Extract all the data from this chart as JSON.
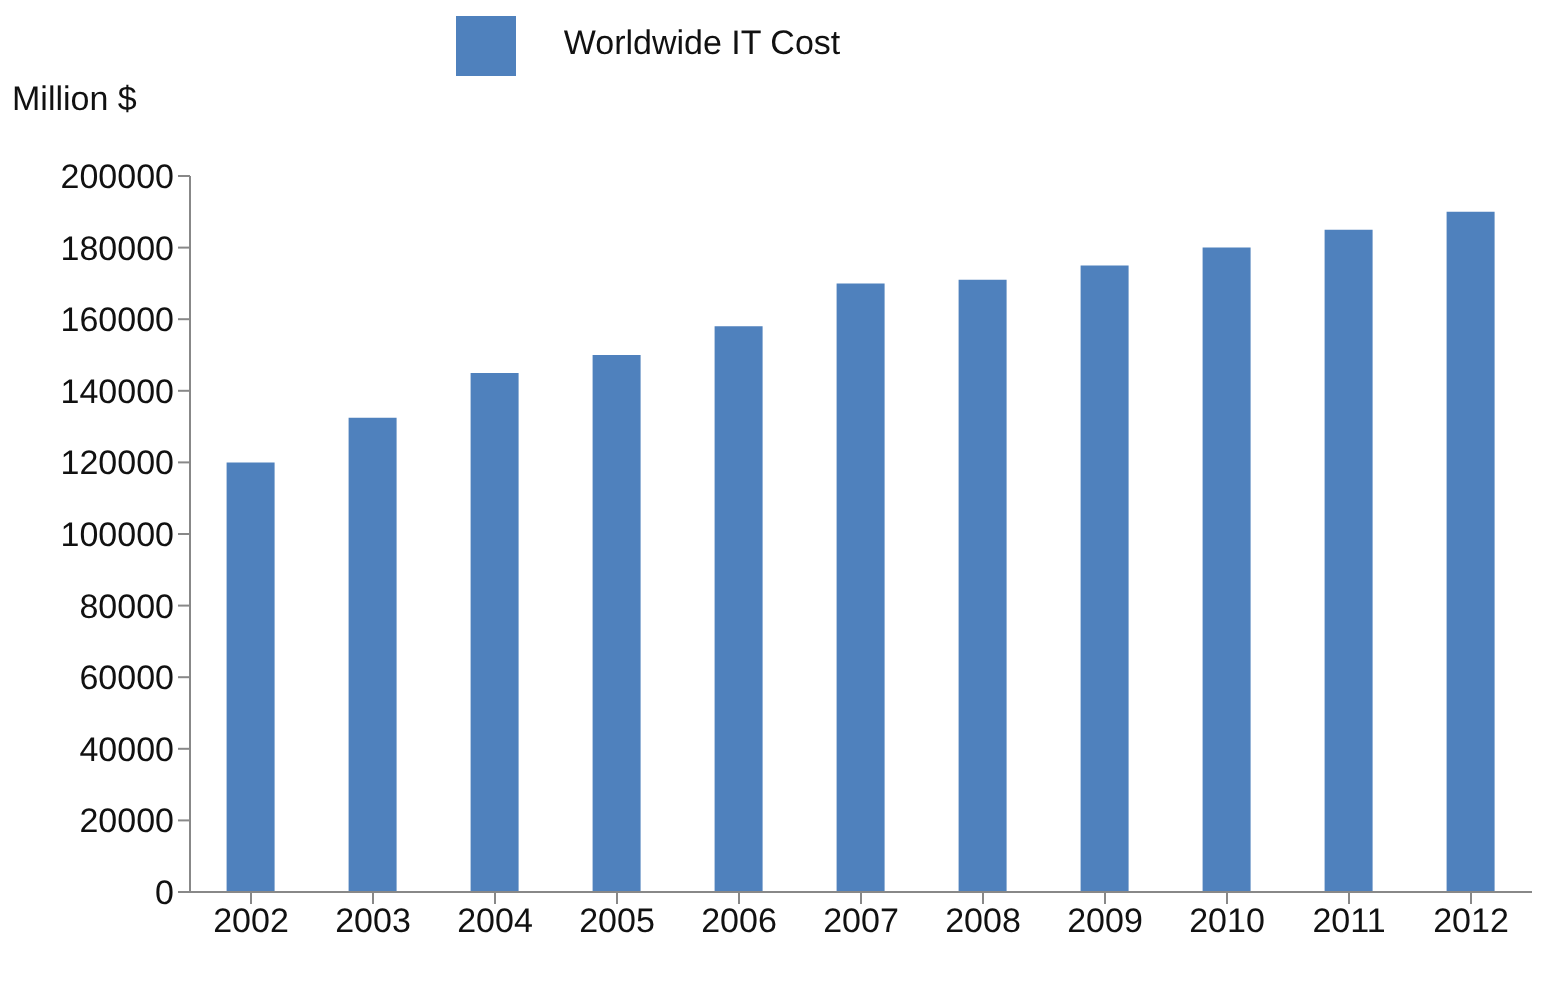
{
  "chart_data": {
    "type": "bar",
    "ylabel": "Million $",
    "categories": [
      "2002",
      "2003",
      "2004",
      "2005",
      "2006",
      "2007",
      "2008",
      "2009",
      "2010",
      "2011",
      "2012"
    ],
    "series": [
      {
        "name": "Worldwide IT Cost",
        "color": "#4f81bd",
        "values": [
          120000,
          132500,
          145000,
          150000,
          158000,
          170000,
          171000,
          175000,
          180000,
          185000,
          190000
        ]
      }
    ],
    "ylim": [
      0,
      200000
    ],
    "yticks": [
      0,
      20000,
      40000,
      60000,
      80000,
      100000,
      120000,
      140000,
      160000,
      180000,
      200000
    ],
    "grid": false,
    "legend": "top"
  }
}
